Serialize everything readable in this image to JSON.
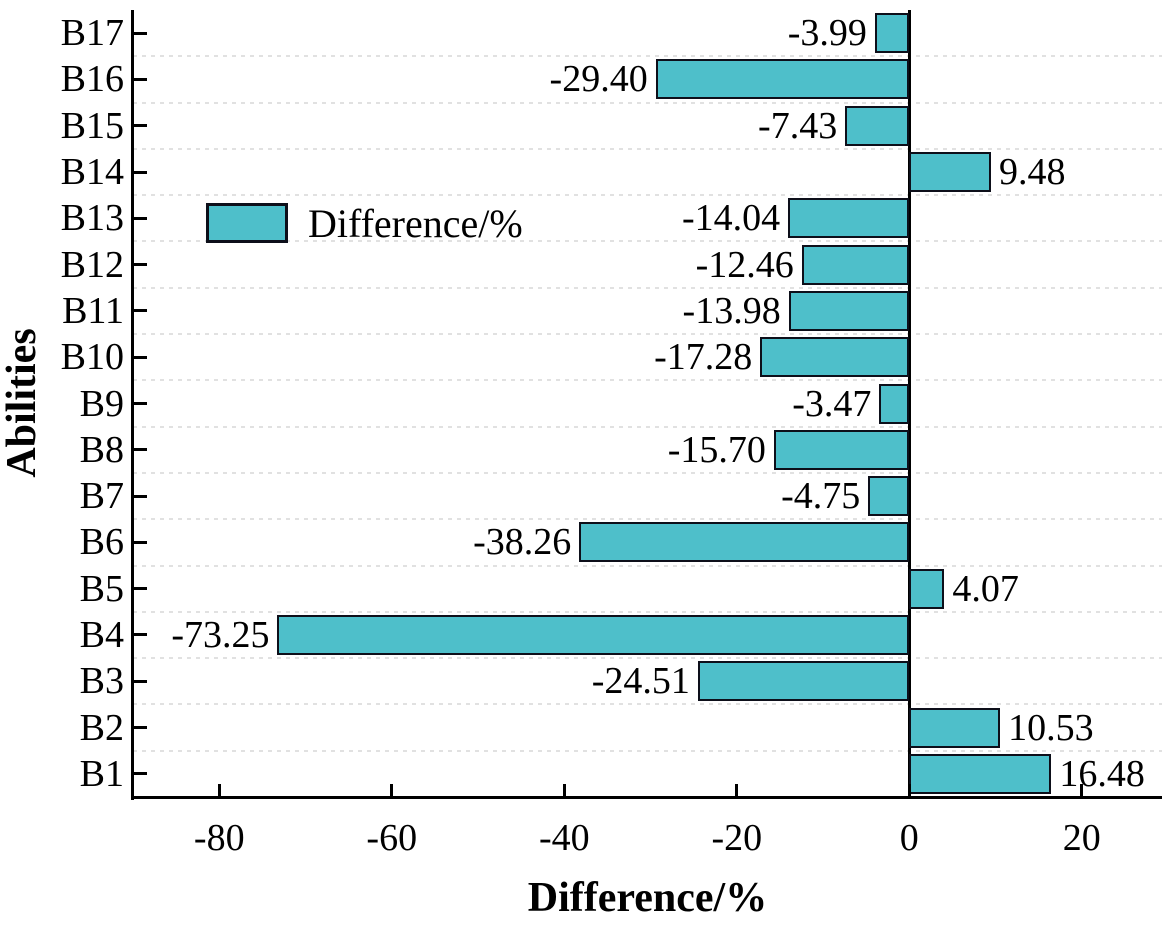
{
  "chart_data": {
    "type": "bar",
    "orientation": "horizontal",
    "title": "",
    "xlabel": "Difference/%",
    "ylabel": "Abilities",
    "legend": {
      "label": "Difference/%",
      "position": "upper-left-inside-plot"
    },
    "category_order": "top-to-bottom",
    "categories": [
      "B17",
      "B16",
      "B15",
      "B14",
      "B13",
      "B12",
      "B11",
      "B10",
      "B9",
      "B8",
      "B7",
      "B6",
      "B5",
      "B4",
      "B3",
      "B2",
      "B1"
    ],
    "values": [
      -3.99,
      -29.4,
      -7.43,
      9.48,
      -14.04,
      -12.46,
      -13.98,
      -17.28,
      -3.47,
      -15.7,
      -4.75,
      -38.26,
      4.07,
      -73.25,
      -24.51,
      10.53,
      16.48
    ],
    "value_labels": [
      "-3.99",
      "-29.40",
      "-7.43",
      "9.48",
      "-14.04",
      "-12.46",
      "-13.98",
      "-17.28",
      "-3.47",
      "-15.70",
      "-4.75",
      "-38.26",
      "4.07",
      "-73.25",
      "-24.51",
      "10.53",
      "16.48"
    ],
    "xticks": [
      -80,
      -60,
      -40,
      -20,
      0,
      20
    ],
    "xtick_labels": [
      "-80",
      "-60",
      "-40",
      "-20",
      "0",
      "20"
    ],
    "xlim": [
      -90,
      29.3
    ],
    "grid": "horizontal-dashed-between-categories",
    "colors": {
      "bar_fill": "#4ebfca",
      "bar_edge": "#0d0f1a",
      "axis": "#000000",
      "gridline": "#e1e1e1",
      "background": "#ffffff",
      "text": "#000000"
    }
  }
}
